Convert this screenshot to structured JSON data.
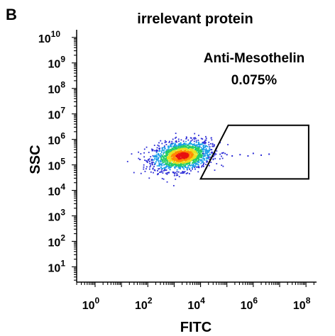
{
  "panel_label": "B",
  "chart_data": {
    "type": "scatter",
    "title": "irrelevant protein",
    "xlabel": "FITC",
    "ylabel": "SSC",
    "xscale": "log",
    "yscale": "log",
    "xlim_exp": [
      -0.7,
      8.4
    ],
    "ylim_exp": [
      0.4,
      10.3
    ],
    "xticks": [
      {
        "exp": 0,
        "base": "10",
        "sup": "0"
      },
      {
        "exp": 2,
        "base": "10",
        "sup": "2"
      },
      {
        "exp": 4,
        "base": "10",
        "sup": "4"
      },
      {
        "exp": 6,
        "base": "10",
        "sup": "6"
      },
      {
        "exp": 8,
        "base": "10",
        "sup": "8"
      }
    ],
    "yticks": [
      {
        "exp": 1,
        "base": "10",
        "sup": "1"
      },
      {
        "exp": 2,
        "base": "10",
        "sup": "2"
      },
      {
        "exp": 3,
        "base": "10",
        "sup": "3"
      },
      {
        "exp": 4,
        "base": "10",
        "sup": "4"
      },
      {
        "exp": 5,
        "base": "10",
        "sup": "5"
      },
      {
        "exp": 6,
        "base": "10",
        "sup": "6"
      },
      {
        "exp": 7,
        "base": "10",
        "sup": "7"
      },
      {
        "exp": 8,
        "base": "10",
        "sup": "8"
      },
      {
        "exp": 9,
        "base": "10",
        "sup": "9"
      },
      {
        "exp": 10,
        "base": "10",
        "sup": "10"
      }
    ],
    "population": {
      "center_log": [
        3.3,
        5.35
      ],
      "spread_log": [
        0.55,
        0.28
      ],
      "colors": [
        "#2b2bd6",
        "#1a9ee8",
        "#22cc66",
        "#e8e020",
        "#ff8a00",
        "#e81010"
      ]
    },
    "outliers_log": [
      [
        5.0,
        5.4
      ],
      [
        5.2,
        5.35
      ],
      [
        5.5,
        5.4
      ],
      [
        5.8,
        5.35
      ],
      [
        6.0,
        5.45
      ],
      [
        6.3,
        5.38
      ],
      [
        6.6,
        5.42
      ],
      [
        4.1,
        5.45
      ],
      [
        4.3,
        5.3
      ]
    ],
    "gate": {
      "name": "Anti-Mesothelin",
      "value": "0.075%",
      "vertices_log": [
        [
          4.0,
          4.45
        ],
        [
          5.05,
          6.55
        ],
        [
          8.1,
          6.55
        ],
        [
          8.1,
          4.45
        ]
      ]
    },
    "grid": false,
    "legend": "none"
  }
}
